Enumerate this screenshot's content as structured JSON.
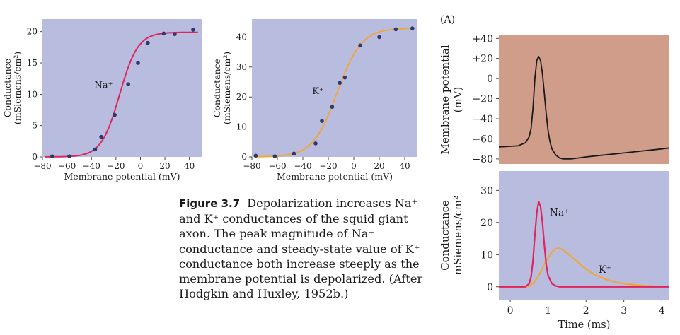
{
  "colors": {
    "panel_blue": "#b8bde0",
    "panel_salmon": "#cf9d8a",
    "na_curve": "#e0245e",
    "k_curve": "#f2a63a",
    "points": "#2b3a6e",
    "voltage_trace": "#1a1a1a"
  },
  "chart_data": [
    {
      "type": "scatter",
      "panel": "na",
      "xlabel": "Membrane potential (mV)",
      "ylabel_lines": [
        "Conductance",
        "(mSiemens/cm²)"
      ],
      "xlim": [
        -80,
        50
      ],
      "ylim": [
        0,
        22
      ],
      "xticks": [
        "−80",
        "−60",
        "−40",
        "−20",
        "0",
        "20",
        "40"
      ],
      "xtick_values": [
        -80,
        -60,
        -40,
        -20,
        0,
        20,
        40
      ],
      "yticks": [
        "0",
        "5",
        "10",
        "15",
        "20"
      ],
      "ytick_values": [
        0,
        5,
        10,
        15,
        20
      ],
      "annotation": "Na⁺",
      "annotation_at": [
        -30,
        11
      ],
      "points_x": [
        -72,
        -58,
        -37,
        -32,
        -21,
        -10,
        -2,
        6,
        19,
        28,
        43
      ],
      "points_y": [
        0.1,
        0.1,
        1.2,
        3.2,
        6.7,
        11.6,
        15.0,
        18.2,
        19.7,
        19.6,
        20.3
      ],
      "fit_curve": {
        "type": "logistic",
        "max": 19.9,
        "mid": -17,
        "slope": 7.5
      }
    },
    {
      "type": "scatter",
      "panel": "k",
      "xlabel": "Membrane potential (mV)",
      "ylabel_lines": [
        "Conductance",
        "(mSiemens/cm²)"
      ],
      "xlim": [
        -80,
        50
      ],
      "ylim": [
        0,
        46
      ],
      "xticks": [
        "−80",
        "−60",
        "−40",
        "−20",
        "0",
        "20",
        "40"
      ],
      "xtick_values": [
        -80,
        -60,
        -40,
        -20,
        0,
        20,
        40
      ],
      "yticks": [
        "0",
        "10",
        "20",
        "30",
        "40"
      ],
      "ytick_values": [
        0,
        10,
        20,
        30,
        40
      ],
      "annotation": "K⁺",
      "annotation_at": [
        -28,
        21
      ],
      "points_x": [
        -77,
        -62,
        -47,
        -30,
        -25,
        -17,
        -11,
        -7,
        5,
        20,
        33,
        46
      ],
      "points_y": [
        0.4,
        0.2,
        1.1,
        4.5,
        12.0,
        16.7,
        24.7,
        26.5,
        37.2,
        40.0,
        42.6,
        42.9
      ],
      "fit_curve": {
        "type": "logistic",
        "max": 43,
        "mid": -13,
        "slope": 9.5
      }
    },
    {
      "type": "line",
      "panel": "voltage",
      "label": "(A)",
      "ylabel_lines": [
        "Membrane potential",
        "(mV)"
      ],
      "xlim": [
        -0.3,
        4.2
      ],
      "ylim": [
        -85,
        43
      ],
      "yticks": [
        "+40",
        "+20",
        "0",
        "−20",
        "−40",
        "−60",
        "−80"
      ],
      "ytick_values": [
        40,
        20,
        0,
        -20,
        -40,
        -60,
        -80
      ],
      "series": [
        {
          "x": [
            -0.3,
            0.2,
            0.4,
            0.5,
            0.55,
            0.6,
            0.65,
            0.7,
            0.75,
            0.8,
            0.85,
            0.9,
            0.95,
            1.0,
            1.05,
            1.1,
            1.2,
            1.3,
            1.4,
            1.6,
            1.8,
            2.0,
            2.5,
            3.0,
            3.5,
            4.0,
            4.2
          ],
          "y": [
            -68,
            -67,
            -64,
            -58,
            -50,
            -30,
            0,
            18,
            22,
            18,
            5,
            -15,
            -35,
            -52,
            -63,
            -70,
            -76,
            -79,
            -80,
            -80,
            -79,
            -78,
            -76,
            -74,
            -72,
            -70,
            -69
          ]
        }
      ]
    },
    {
      "type": "line",
      "panel": "conductance",
      "xlabel": "Time (ms)",
      "ylabel_lines": [
        "Conductance",
        "mSiemens/cm²"
      ],
      "xlim": [
        -0.3,
        4.2
      ],
      "ylim": [
        -4,
        36
      ],
      "xticks": [
        "0",
        "1",
        "2",
        "3",
        "4"
      ],
      "xtick_values": [
        0,
        1,
        2,
        3,
        4
      ],
      "yticks": [
        "30",
        "20",
        "10",
        "0"
      ],
      "ytick_values": [
        30,
        20,
        10,
        0
      ],
      "series": [
        {
          "name": "Na⁺",
          "name_at": [
            1.3,
            22
          ],
          "x": [
            -0.3,
            0.4,
            0.5,
            0.55,
            0.6,
            0.65,
            0.7,
            0.75,
            0.8,
            0.85,
            0.9,
            0.95,
            1.0,
            1.1,
            1.2,
            1.3,
            1.5,
            2.0,
            4.2
          ],
          "y": [
            0,
            0,
            1,
            3,
            8,
            16,
            23,
            26.5,
            25,
            20,
            13,
            7,
            3.5,
            1,
            0.3,
            0,
            0,
            0,
            0
          ]
        },
        {
          "name": "K⁺",
          "name_at": [
            2.5,
            4.3
          ],
          "x": [
            -0.3,
            0.4,
            0.5,
            0.6,
            0.7,
            0.8,
            0.9,
            1.0,
            1.1,
            1.2,
            1.3,
            1.4,
            1.5,
            1.6,
            1.8,
            2.0,
            2.2,
            2.5,
            2.8,
            3.0,
            3.3,
            3.6,
            4.2
          ],
          "y": [
            0,
            0,
            0.2,
            1,
            2.5,
            4.5,
            7,
            9,
            10.8,
            11.8,
            12,
            11.5,
            10.5,
            9.5,
            7.5,
            5.5,
            4,
            2.4,
            1.4,
            1,
            0.6,
            0.3,
            0
          ]
        }
      ]
    }
  ],
  "caption": {
    "figure_label": "Figure 3.7",
    "text": "Depolarization increases Na⁺ and K⁺ conductances of the squid giant axon. The peak magnitude of Na⁺ conductance and steady-state value of K⁺ conductance both increase steeply as the membrane potential is depolarized. (After Hodgkin and Huxley, 1952b.)"
  }
}
